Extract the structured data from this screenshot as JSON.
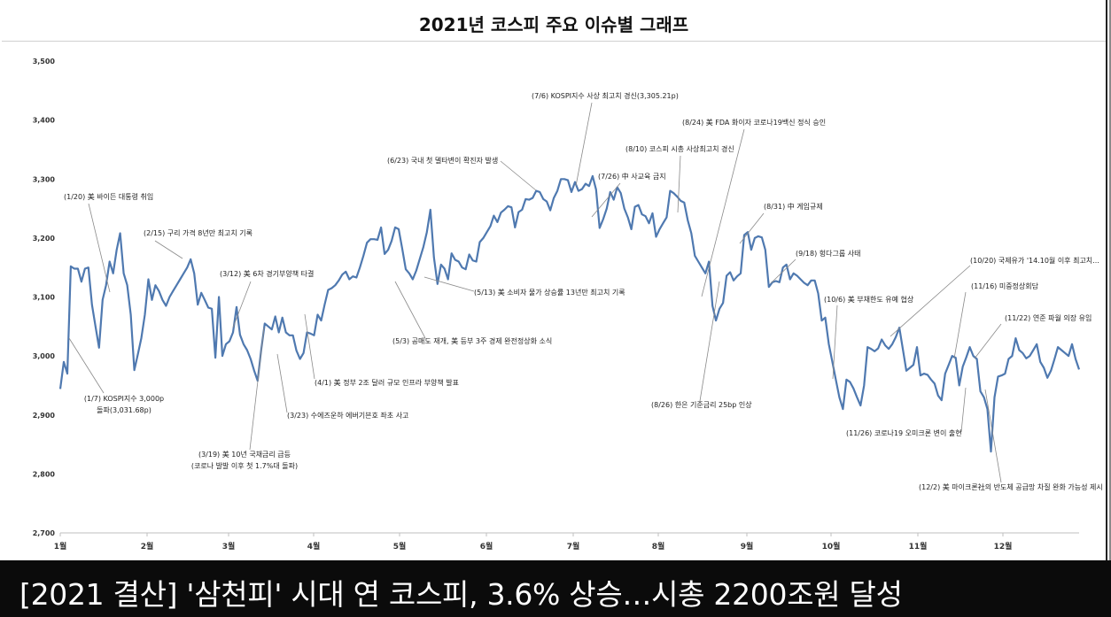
{
  "header": {
    "title": "2021년   코스피 주요 이슈별 그래프"
  },
  "caption": "[2021 결산] '삼천피' 시대 연 코스피, 3.6% 상승…시총 2200조원 달성",
  "chart_data": {
    "type": "line",
    "title": "2021년   코스피 주요 이슈별 그래프",
    "ylim": [
      2700,
      3500
    ],
    "y_ticks": [
      "3,500",
      "3,400",
      "3,300",
      "3,200",
      "3,100",
      "3,000",
      "2,900",
      "2,800",
      "2,700"
    ],
    "x_ticks": [
      "1월",
      "2월",
      "3월",
      "4월",
      "5월",
      "6월",
      "7월",
      "8월",
      "9월",
      "10월",
      "11월",
      "12월"
    ],
    "line_color": "#4f79b0",
    "grid": false,
    "series": [
      {
        "values": [
          2944,
          2990,
          2970,
          3152,
          3148,
          3148,
          3126,
          3148,
          3150,
          3087,
          3050,
          3014,
          3095,
          3120,
          3160,
          3140,
          3180,
          3208,
          3140,
          3120,
          3070,
          2976,
          3002,
          3030,
          3070,
          3130,
          3095,
          3120,
          3110,
          3095,
          3085,
          3100,
          3110,
          3120,
          3130,
          3140,
          3150,
          3164,
          3140,
          3087,
          3107,
          3095,
          3082,
          3080,
          2997,
          3100,
          3000,
          3020,
          3025,
          3040,
          3083,
          3036,
          3020,
          3010,
          2995,
          2975,
          2958,
          3010,
          3055,
          3050,
          3045,
          3067,
          3040,
          3065,
          3040,
          3035,
          3035,
          3009,
          2995,
          3005,
          3040,
          3038,
          3035,
          3070,
          3060,
          3087,
          3112,
          3115,
          3120,
          3128,
          3138,
          3143,
          3130,
          3135,
          3133,
          3150,
          3170,
          3192,
          3198,
          3198,
          3197,
          3218,
          3173,
          3180,
          3195,
          3218,
          3215,
          3182,
          3147,
          3140,
          3130,
          3145,
          3165,
          3185,
          3210,
          3248,
          3167,
          3122,
          3155,
          3148,
          3130,
          3174,
          3163,
          3160,
          3150,
          3147,
          3172,
          3162,
          3160,
          3193,
          3200,
          3210,
          3220,
          3238,
          3227,
          3243,
          3248,
          3254,
          3252,
          3218,
          3244,
          3248,
          3266,
          3265,
          3268,
          3280,
          3278,
          3266,
          3262,
          3247,
          3268,
          3280,
          3300,
          3300,
          3298,
          3278,
          3295,
          3280,
          3283,
          3292,
          3288,
          3305,
          3282,
          3217,
          3232,
          3250,
          3278,
          3265,
          3286,
          3276,
          3250,
          3235,
          3215,
          3253,
          3256,
          3240,
          3237,
          3225,
          3242,
          3202,
          3215,
          3225,
          3235,
          3280,
          3276,
          3270,
          3263,
          3260,
          3230,
          3208,
          3170,
          3160,
          3150,
          3140,
          3160,
          3085,
          3060,
          3080,
          3090,
          3136,
          3142,
          3128,
          3135,
          3140,
          3205,
          3210,
          3180,
          3200,
          3203,
          3201,
          3180,
          3117,
          3125,
          3127,
          3125,
          3150,
          3155,
          3130,
          3140,
          3136,
          3130,
          3124,
          3120,
          3128,
          3128,
          3106,
          3060,
          3065,
          3020,
          2990,
          2960,
          2930,
          2910,
          2960,
          2956,
          2945,
          2930,
          2916,
          2950,
          3015,
          3012,
          3008,
          3013,
          3028,
          3018,
          3012,
          3020,
          3032,
          3048,
          3012,
          2975,
          2980,
          2985,
          3015,
          2967,
          2970,
          2968,
          2960,
          2953,
          2933,
          2925,
          2970,
          2985,
          3000,
          2997,
          2950,
          2982,
          2998,
          3015,
          3000,
          2995,
          2940,
          2930,
          2910,
          2838,
          2930,
          2965,
          2967,
          2970,
          2995,
          3000,
          3030,
          3010,
          3005,
          2996,
          3000,
          3010,
          3020,
          2990,
          2980,
          2963,
          2975,
          2994,
          3015,
          3010,
          3005,
          3000,
          3020,
          2995,
          2977
        ]
      }
    ],
    "annotations": [
      {
        "label": "(1/7) KOSPI지수 3,000p",
        "label2": "돌파(3,031.68p)"
      },
      {
        "label": "(1/20) 美 바이든 대통령 취임"
      },
      {
        "label": "(2/15) 구리 가격 8년만 최고치 기록"
      },
      {
        "label": "(3/12) 美 6차 경기부양책 타결"
      },
      {
        "label": "(3/19) 美 10년 국채금리 급등",
        "label2": "(코로나 발발 이후 첫 1.7%대 돌파)"
      },
      {
        "label": "(3/23) 수에즈운하 에버기븐호 좌초 사고"
      },
      {
        "label": "(4/1) 美 정부 2조 달러 규모 인프라 부양책 발표"
      },
      {
        "label": "(5/3) 공매도 재개, 美 등부 3주 경제 완전정상화 소식"
      },
      {
        "label": "(5/13) 美 소비자 물가 상승률 13년만 최고치 기록"
      },
      {
        "label": "(6/23) 국내 첫 델타변이 확진자 발생"
      },
      {
        "label": "(7/6) KOSPI지수 사상 최고치 경신(3,305.21p)"
      },
      {
        "label": "(7/26) 中 사교육 금지"
      },
      {
        "label": "(8/10) 코스피 시총 사상최고치 경신"
      },
      {
        "label": "(8/24) 美 FDA 화이자 코로나19백신 정식 승인"
      },
      {
        "label": "(8/26) 한은 기준금리 25bp 인상"
      },
      {
        "label": "(8/31) 中 게임규제"
      },
      {
        "label": "(9/18) 헝다그룹 사태"
      },
      {
        "label": "(10/6) 美 부채한도 유예 협상"
      },
      {
        "label": "(10/20) 국제유가 '14.10월 이후 최고치..."
      },
      {
        "label": "(11/16) 미중정상회담"
      },
      {
        "label": "(11/22) 연준 파월 의장 유임"
      },
      {
        "label": "(11/26) 코로나19 오미크론 변이 출현"
      },
      {
        "label": "(12/2) 美 마이크론社의 반도체 공급망 차질 완화 가능성 제시"
      }
    ]
  }
}
